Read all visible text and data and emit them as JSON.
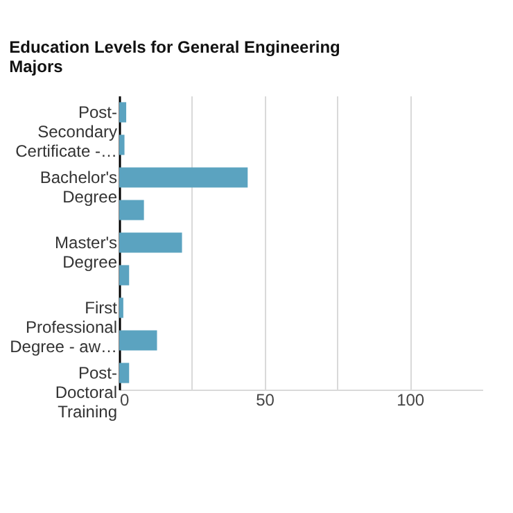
{
  "chart_data": {
    "type": "bar",
    "orientation": "horizontal",
    "title": "Education Levels for General Engineering Majors",
    "categories": [
      "Post-Secondary Certificate -…",
      null,
      "Bachelor's Degree",
      null,
      "Master's Degree",
      null,
      "First Professional Degree - aw…",
      null,
      "Post-Doctoral Training"
    ],
    "values": [
      2.4,
      1.8,
      44.2,
      8.5,
      21.6,
      3.4,
      1.4,
      13,
      3.4
    ],
    "color": "#5ba3c0",
    "xlim": [
      0,
      125
    ],
    "xticks": [
      0,
      {
        "value": 25,
        "label": null
      },
      50,
      {
        "value": 75,
        "label": null
      },
      100
    ],
    "grid": "x"
  }
}
